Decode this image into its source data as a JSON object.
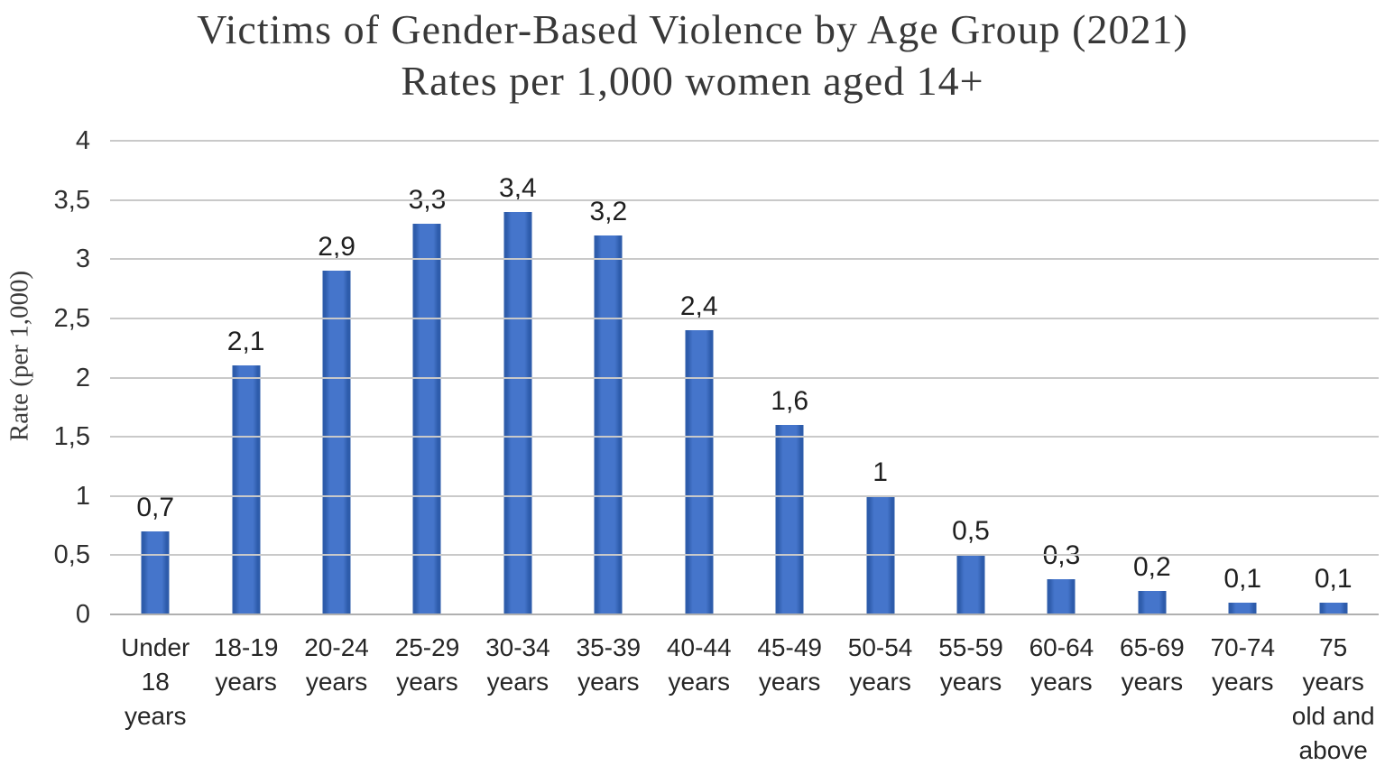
{
  "chart_data": {
    "type": "bar",
    "title": "Victims of Gender-Based Violence by Age Group (2021)",
    "subtitle": "Rates per 1,000 women aged 14+",
    "ylabel": "Rate (per 1,000)",
    "xlabel": "",
    "categories": [
      "Under 18 years",
      "18-19 years",
      "20-24 years",
      "25-29 years",
      "30-34 years",
      "35-39 years",
      "40-44 years",
      "45-49 years",
      "50-54 years",
      "55-59 years",
      "60-64 years",
      "65-69 years",
      "70-74 years",
      "75 years old and above"
    ],
    "values": [
      0.7,
      2.1,
      2.9,
      3.3,
      3.4,
      3.2,
      2.4,
      1.6,
      1,
      0.5,
      0.3,
      0.2,
      0.1,
      0.1
    ],
    "value_labels": [
      "0,7",
      "2,1",
      "2,9",
      "3,3",
      "3,4",
      "3,2",
      "2,4",
      "1,6",
      "1",
      "0,5",
      "0,3",
      "0,2",
      "0,1",
      "0,1"
    ],
    "ylim": [
      0,
      4
    ],
    "ytick_step": 0.5,
    "ytick_labels": [
      "4",
      "3,5",
      "3",
      "2,5",
      "2",
      "1,5",
      "1",
      "0,5",
      "0"
    ],
    "grid": "horizontal",
    "legend": "none",
    "decimal_separator": ",",
    "colors": {
      "bar_fill": "#4575cb",
      "bar_edge": "#2e5cab",
      "gridline": "#c9c9c9",
      "axis_line": "#b0b0b0",
      "title_text": "#383838",
      "label_text": "#262626"
    }
  }
}
